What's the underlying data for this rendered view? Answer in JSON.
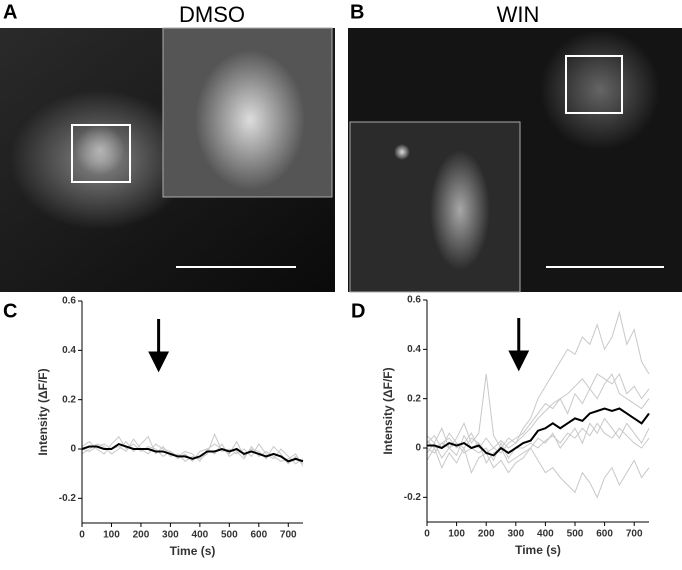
{
  "panels": {
    "A": {
      "label": "A",
      "title": "DMSO"
    },
    "B": {
      "label": "B",
      "title": "WIN"
    },
    "C": {
      "label": "C"
    },
    "D": {
      "label": "D"
    }
  },
  "chart_data": [
    {
      "type": "line",
      "xlabel": "Time (s)",
      "ylabel": "Intensity (ΔF/F)",
      "xlim": [
        0,
        750
      ],
      "ylim": [
        -0.3,
        0.6
      ],
      "xticks": [
        0,
        100,
        200,
        300,
        400,
        500,
        600,
        700
      ],
      "yticks": [
        -0.2,
        0,
        0.2,
        0.4,
        0.6
      ],
      "arrow_x": 260,
      "x": [
        0,
        25,
        50,
        75,
        100,
        125,
        150,
        175,
        200,
        225,
        250,
        275,
        300,
        325,
        350,
        375,
        400,
        425,
        450,
        475,
        500,
        525,
        550,
        575,
        600,
        625,
        650,
        675,
        700,
        725,
        750
      ],
      "series": [
        {
          "color": "#c8c8c8",
          "values": [
            0.01,
            0.03,
            0.0,
            -0.02,
            0.02,
            0.05,
            0.0,
            0.02,
            -0.01,
            0.01,
            0.0,
            -0.03,
            -0.01,
            -0.04,
            -0.02,
            -0.05,
            -0.01,
            0.0,
            0.02,
            0.0,
            -0.02,
            0.03,
            -0.03,
            0.0,
            -0.01,
            -0.04,
            0.01,
            -0.02,
            -0.06,
            -0.03,
            -0.06
          ]
        },
        {
          "color": "#c8c8c8",
          "values": [
            -0.02,
            0.0,
            0.02,
            0.01,
            -0.02,
            0.0,
            0.03,
            -0.01,
            0.02,
            0.05,
            -0.02,
            0.01,
            -0.03,
            -0.02,
            -0.05,
            -0.03,
            -0.04,
            -0.02,
            0.06,
            -0.01,
            0.0,
            -0.02,
            0.0,
            -0.03,
            0.02,
            -0.02,
            -0.04,
            0.0,
            -0.03,
            -0.06,
            -0.04
          ]
        },
        {
          "color": "#c8c8c8",
          "values": [
            0.0,
            -0.01,
            0.01,
            0.02,
            0.0,
            0.01,
            -0.01,
            0.04,
            0.0,
            -0.02,
            0.02,
            0.0,
            -0.01,
            -0.03,
            -0.01,
            -0.02,
            -0.05,
            0.0,
            -0.02,
            0.02,
            -0.03,
            -0.01,
            -0.04,
            0.01,
            -0.03,
            -0.01,
            -0.03,
            -0.05,
            -0.04,
            -0.02,
            -0.07
          ]
        },
        {
          "color": "#000000",
          "values": [
            0.0,
            0.01,
            0.01,
            0.0,
            0.0,
            0.02,
            0.01,
            0.0,
            0.0,
            0.0,
            -0.01,
            -0.01,
            -0.02,
            -0.03,
            -0.03,
            -0.04,
            -0.03,
            -0.01,
            -0.01,
            0.0,
            -0.01,
            0.0,
            -0.02,
            -0.01,
            -0.02,
            -0.03,
            -0.02,
            -0.03,
            -0.05,
            -0.04,
            -0.05
          ]
        }
      ]
    },
    {
      "type": "line",
      "xlabel": "Time (s)",
      "ylabel": "Intensity (ΔF/F)",
      "xlim": [
        0,
        750
      ],
      "ylim": [
        -0.3,
        0.6
      ],
      "xticks": [
        0,
        100,
        200,
        300,
        400,
        500,
        600,
        700
      ],
      "yticks": [
        -0.2,
        0,
        0.2,
        0.4,
        0.6
      ],
      "arrow_x": 310,
      "x": [
        0,
        25,
        50,
        75,
        100,
        125,
        150,
        175,
        200,
        225,
        250,
        275,
        300,
        325,
        350,
        375,
        400,
        425,
        450,
        475,
        500,
        525,
        550,
        575,
        600,
        625,
        650,
        675,
        700,
        725,
        750
      ],
      "series": [
        {
          "color": "#c8c8c8",
          "values": [
            0.05,
            0.02,
            0.08,
            0.0,
            0.04,
            0.1,
            0.02,
            0.06,
            0.3,
            0.05,
            0.0,
            0.04,
            0.02,
            0.08,
            0.12,
            0.2,
            0.25,
            0.3,
            0.35,
            0.4,
            0.38,
            0.45,
            0.42,
            0.5,
            0.4,
            0.45,
            0.55,
            0.42,
            0.48,
            0.35,
            0.3
          ]
        },
        {
          "color": "#c8c8c8",
          "values": [
            -0.05,
            0.0,
            -0.08,
            -0.02,
            -0.06,
            0.0,
            -0.1,
            -0.04,
            -0.02,
            -0.08,
            -0.05,
            -0.1,
            -0.06,
            -0.04,
            0.0,
            -0.05,
            -0.1,
            -0.08,
            -0.12,
            -0.15,
            -0.18,
            -0.1,
            -0.14,
            -0.2,
            -0.12,
            -0.08,
            -0.15,
            -0.1,
            -0.05,
            -0.12,
            -0.08
          ]
        },
        {
          "color": "#c8c8c8",
          "values": [
            0.02,
            0.05,
            0.0,
            0.06,
            0.02,
            0.0,
            0.04,
            0.02,
            -0.02,
            0.0,
            0.03,
            0.0,
            0.02,
            0.05,
            0.08,
            0.12,
            0.15,
            0.18,
            0.2,
            0.22,
            0.25,
            0.28,
            0.24,
            0.3,
            0.28,
            0.26,
            0.3,
            0.22,
            0.25,
            0.2,
            0.24
          ]
        },
        {
          "color": "#c8c8c8",
          "values": [
            0.0,
            -0.02,
            0.02,
            0.0,
            -0.03,
            0.05,
            0.0,
            -0.02,
            0.0,
            -0.05,
            0.02,
            -0.04,
            0.0,
            0.0,
            0.02,
            0.0,
            0.03,
            0.05,
            0.02,
            0.06,
            0.04,
            0.08,
            0.05,
            0.1,
            0.06,
            0.04,
            0.08,
            0.05,
            0.02,
            0.0,
            0.04
          ]
        },
        {
          "color": "#c8c8c8",
          "values": [
            0.03,
            0.0,
            0.02,
            0.04,
            0.0,
            0.02,
            0.06,
            0.0,
            0.04,
            0.0,
            -0.02,
            0.02,
            0.04,
            0.06,
            0.1,
            0.14,
            0.18,
            0.16,
            0.2,
            0.14,
            0.22,
            0.18,
            0.24,
            0.2,
            0.26,
            0.3,
            0.22,
            0.2,
            0.18,
            0.16,
            0.2
          ]
        },
        {
          "color": "#c8c8c8",
          "values": [
            -0.02,
            0.02,
            -0.04,
            0.0,
            0.02,
            -0.02,
            0.0,
            0.02,
            -0.06,
            -0.02,
            0.0,
            -0.06,
            -0.04,
            -0.02,
            0.0,
            0.04,
            0.02,
            0.06,
            0.0,
            0.04,
            0.08,
            0.02,
            0.1,
            0.06,
            0.12,
            0.08,
            0.04,
            0.1,
            0.06,
            0.02,
            0.08
          ]
        },
        {
          "color": "#000000",
          "values": [
            0.01,
            0.01,
            0.0,
            0.02,
            0.01,
            0.02,
            0.0,
            0.01,
            -0.02,
            -0.03,
            0.0,
            -0.02,
            0.0,
            0.02,
            0.03,
            0.07,
            0.08,
            0.1,
            0.08,
            0.1,
            0.12,
            0.11,
            0.14,
            0.15,
            0.16,
            0.15,
            0.16,
            0.14,
            0.12,
            0.1,
            0.14
          ]
        }
      ]
    }
  ]
}
